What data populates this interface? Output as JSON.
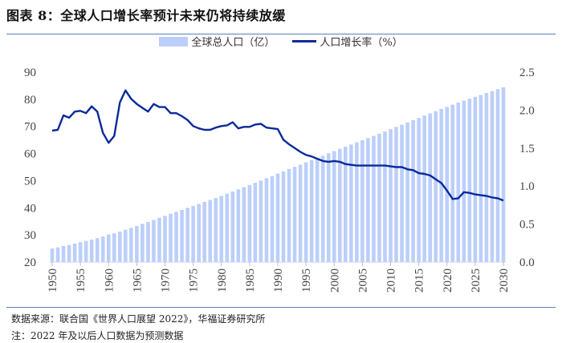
{
  "title": "图表 8：全球人口增长率预计未来仍将持续放缓",
  "footer": {
    "source": "数据来源：联合国《世界人口展望 2022》，华福证券研究所",
    "note": "注：2022 年及以后人口数据为预测数据"
  },
  "chart_data": {
    "type": "bar+line",
    "title": "",
    "legend": {
      "placement": "top-center",
      "items": [
        "全球总人口（亿）",
        "人口增长率（%）"
      ]
    },
    "x": [
      1950,
      1951,
      1952,
      1953,
      1954,
      1955,
      1956,
      1957,
      1958,
      1959,
      1960,
      1961,
      1962,
      1963,
      1964,
      1965,
      1966,
      1967,
      1968,
      1969,
      1970,
      1971,
      1972,
      1973,
      1974,
      1975,
      1976,
      1977,
      1978,
      1979,
      1980,
      1981,
      1982,
      1983,
      1984,
      1985,
      1986,
      1987,
      1988,
      1989,
      1990,
      1991,
      1992,
      1993,
      1994,
      1995,
      1996,
      1997,
      1998,
      1999,
      2000,
      2001,
      2002,
      2003,
      2004,
      2005,
      2006,
      2007,
      2008,
      2009,
      2010,
      2011,
      2012,
      2013,
      2014,
      2015,
      2016,
      2017,
      2018,
      2019,
      2020,
      2021,
      2022,
      2023,
      2024,
      2025,
      2026,
      2027,
      2028,
      2029,
      2030
    ],
    "x_tick_labels": [
      "1950",
      "1955",
      "1960",
      "1965",
      "1970",
      "1975",
      "1980",
      "1985",
      "1990",
      "1995",
      "2000",
      "2005",
      "2010",
      "2015",
      "2020",
      "2025",
      "2030"
    ],
    "left_axis": {
      "ylim": [
        20,
        90
      ],
      "ticks": [
        "20",
        "30",
        "40",
        "50",
        "60",
        "70",
        "80",
        "90"
      ]
    },
    "right_axis": {
      "ylim": [
        0,
        2.5
      ],
      "ticks": [
        "0.0",
        "0.5",
        "1.0",
        "1.5",
        "2.0",
        "2.5"
      ]
    },
    "grid": false,
    "colors": {
      "bar": "#bccffb",
      "line": "#0a2a9a"
    },
    "series": [
      {
        "name": "全球总人口（亿）",
        "type": "bar",
        "axis": "left",
        "values": [
          25.0,
          25.4,
          25.9,
          26.3,
          26.8,
          27.3,
          27.8,
          28.3,
          28.8,
          29.4,
          30.2,
          30.6,
          31.2,
          31.9,
          32.6,
          33.3,
          34.1,
          34.8,
          35.5,
          36.3,
          37.0,
          37.8,
          38.5,
          39.2,
          40.0,
          40.7,
          41.4,
          42.2,
          42.9,
          43.6,
          44.4,
          45.2,
          46.0,
          46.8,
          47.6,
          48.4,
          49.2,
          50.0,
          50.9,
          51.7,
          52.6,
          53.4,
          54.3,
          55.1,
          55.9,
          56.8,
          57.6,
          58.4,
          59.2,
          60.1,
          60.9,
          61.7,
          62.5,
          63.3,
          64.1,
          64.9,
          65.7,
          66.5,
          67.3,
          68.1,
          69.0,
          69.8,
          70.6,
          71.5,
          72.3,
          73.1,
          74.0,
          74.8,
          75.6,
          76.4,
          77.2,
          78.0,
          78.8,
          79.5,
          80.2,
          80.9,
          81.6,
          82.3,
          83.0,
          83.7,
          84.4
        ]
      },
      {
        "name": "人口增长率（%）",
        "type": "line",
        "axis": "right",
        "values": [
          1.73,
          1.74,
          1.93,
          1.9,
          1.98,
          1.99,
          1.96,
          2.05,
          1.98,
          1.7,
          1.57,
          1.66,
          2.1,
          2.26,
          2.15,
          2.08,
          2.03,
          1.98,
          2.08,
          2.04,
          2.04,
          1.96,
          1.96,
          1.92,
          1.87,
          1.79,
          1.76,
          1.74,
          1.74,
          1.77,
          1.79,
          1.8,
          1.84,
          1.76,
          1.78,
          1.78,
          1.81,
          1.82,
          1.77,
          1.76,
          1.75,
          1.61,
          1.55,
          1.5,
          1.45,
          1.41,
          1.39,
          1.36,
          1.33,
          1.32,
          1.33,
          1.32,
          1.29,
          1.28,
          1.27,
          1.27,
          1.27,
          1.27,
          1.27,
          1.27,
          1.26,
          1.25,
          1.25,
          1.22,
          1.21,
          1.17,
          1.16,
          1.14,
          1.09,
          1.04,
          0.94,
          0.83,
          0.84,
          0.92,
          0.91,
          0.89,
          0.88,
          0.87,
          0.85,
          0.84,
          0.81
        ]
      }
    ]
  }
}
